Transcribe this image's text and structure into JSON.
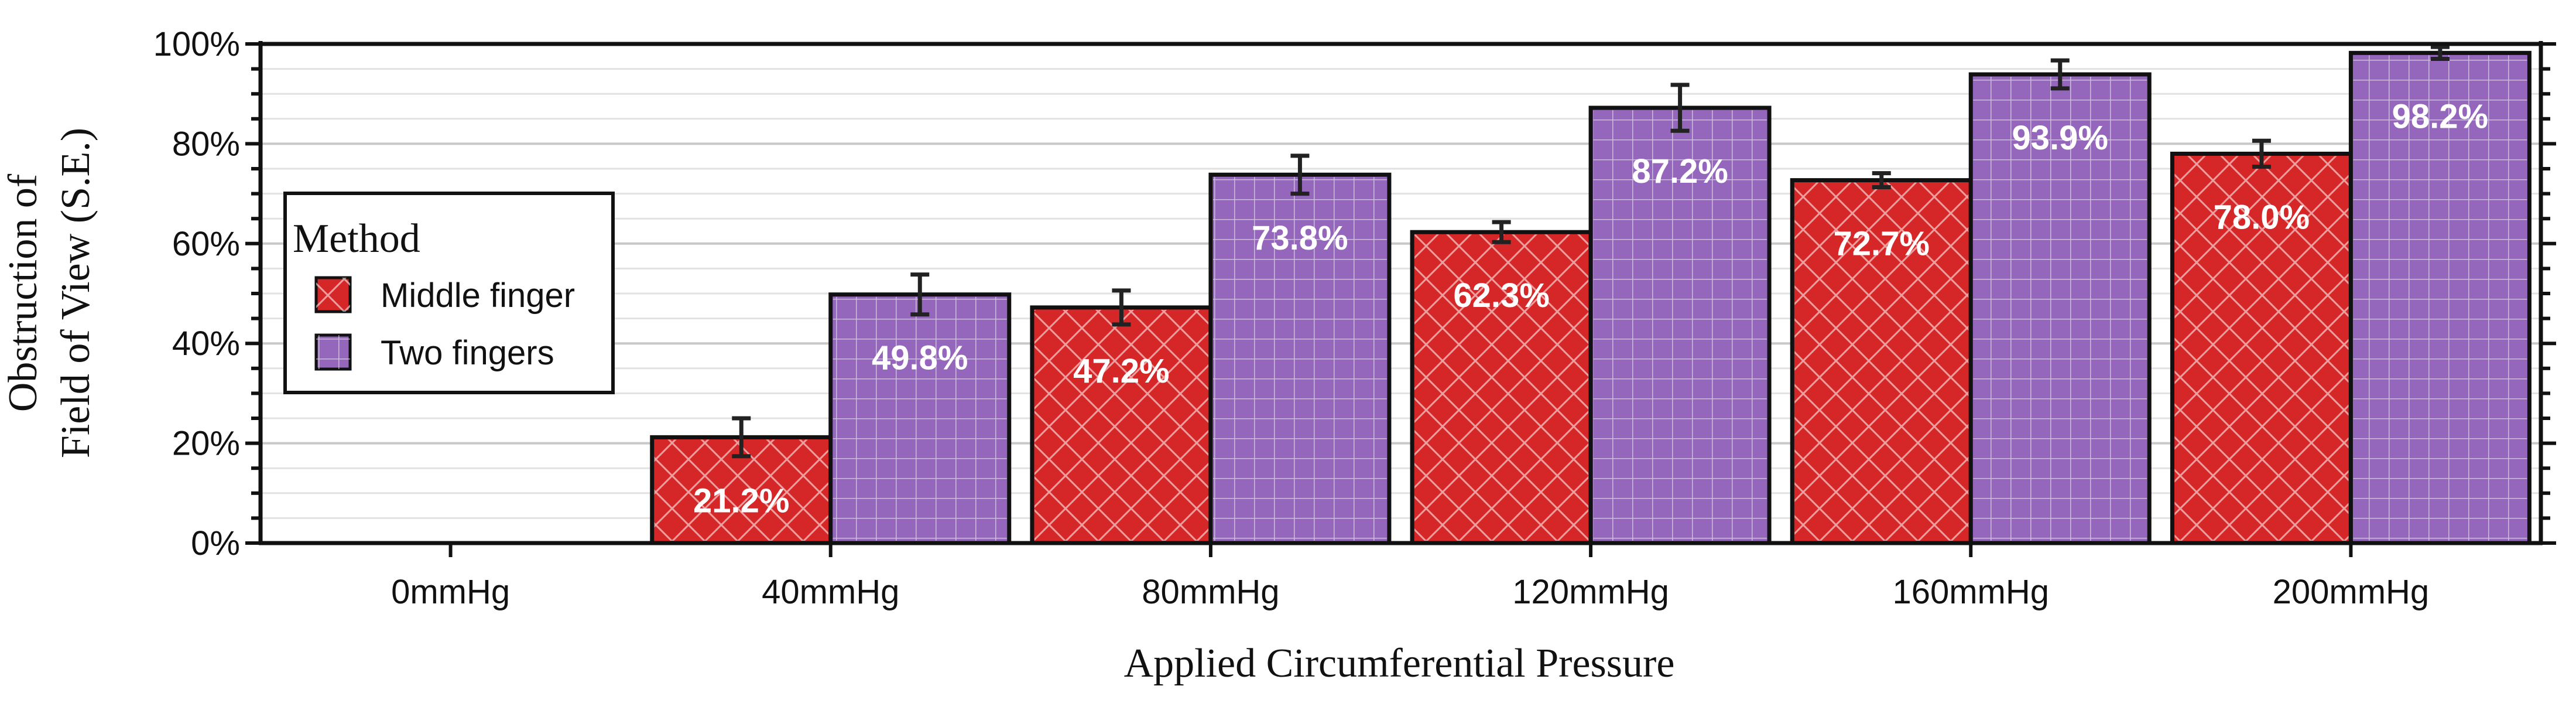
{
  "chart_data": {
    "type": "bar",
    "xlabel": "Applied Circumferential Pressure",
    "ylabel_lines": [
      "Obstruction of",
      "Field of View (S.E.)"
    ],
    "categories": [
      "0mmHg",
      "40mmHg",
      "80mmHg",
      "120mmHg",
      "160mmHg",
      "200mmHg"
    ],
    "ylim": [
      0,
      100
    ],
    "yticks": [
      0,
      20,
      40,
      60,
      80,
      100
    ],
    "ytick_labels": [
      "0%",
      "20%",
      "40%",
      "60%",
      "80%",
      "100%"
    ],
    "legend": {
      "title": "Method",
      "placement": "left"
    },
    "grid": true,
    "series": [
      {
        "name": "Middle finger",
        "color": "#d62728",
        "hatch": "crosshatch-diagonal",
        "values": [
          0,
          21.2,
          47.2,
          62.3,
          72.7,
          78.0
        ],
        "errors": [
          0,
          3.8,
          3.4,
          2.0,
          1.4,
          2.6
        ],
        "labels": [
          "",
          "21.2%",
          "47.2%",
          "62.3%",
          "72.7%",
          "78.0%"
        ]
      },
      {
        "name": "Two fingers",
        "color": "#9467bd",
        "hatch": "grid",
        "values": [
          0,
          49.8,
          73.8,
          87.2,
          93.9,
          98.2
        ],
        "errors": [
          0,
          4.0,
          3.8,
          4.6,
          2.8,
          1.2
        ],
        "labels": [
          "",
          "49.8%",
          "73.8%",
          "87.2%",
          "93.9%",
          "98.2%"
        ]
      }
    ]
  }
}
